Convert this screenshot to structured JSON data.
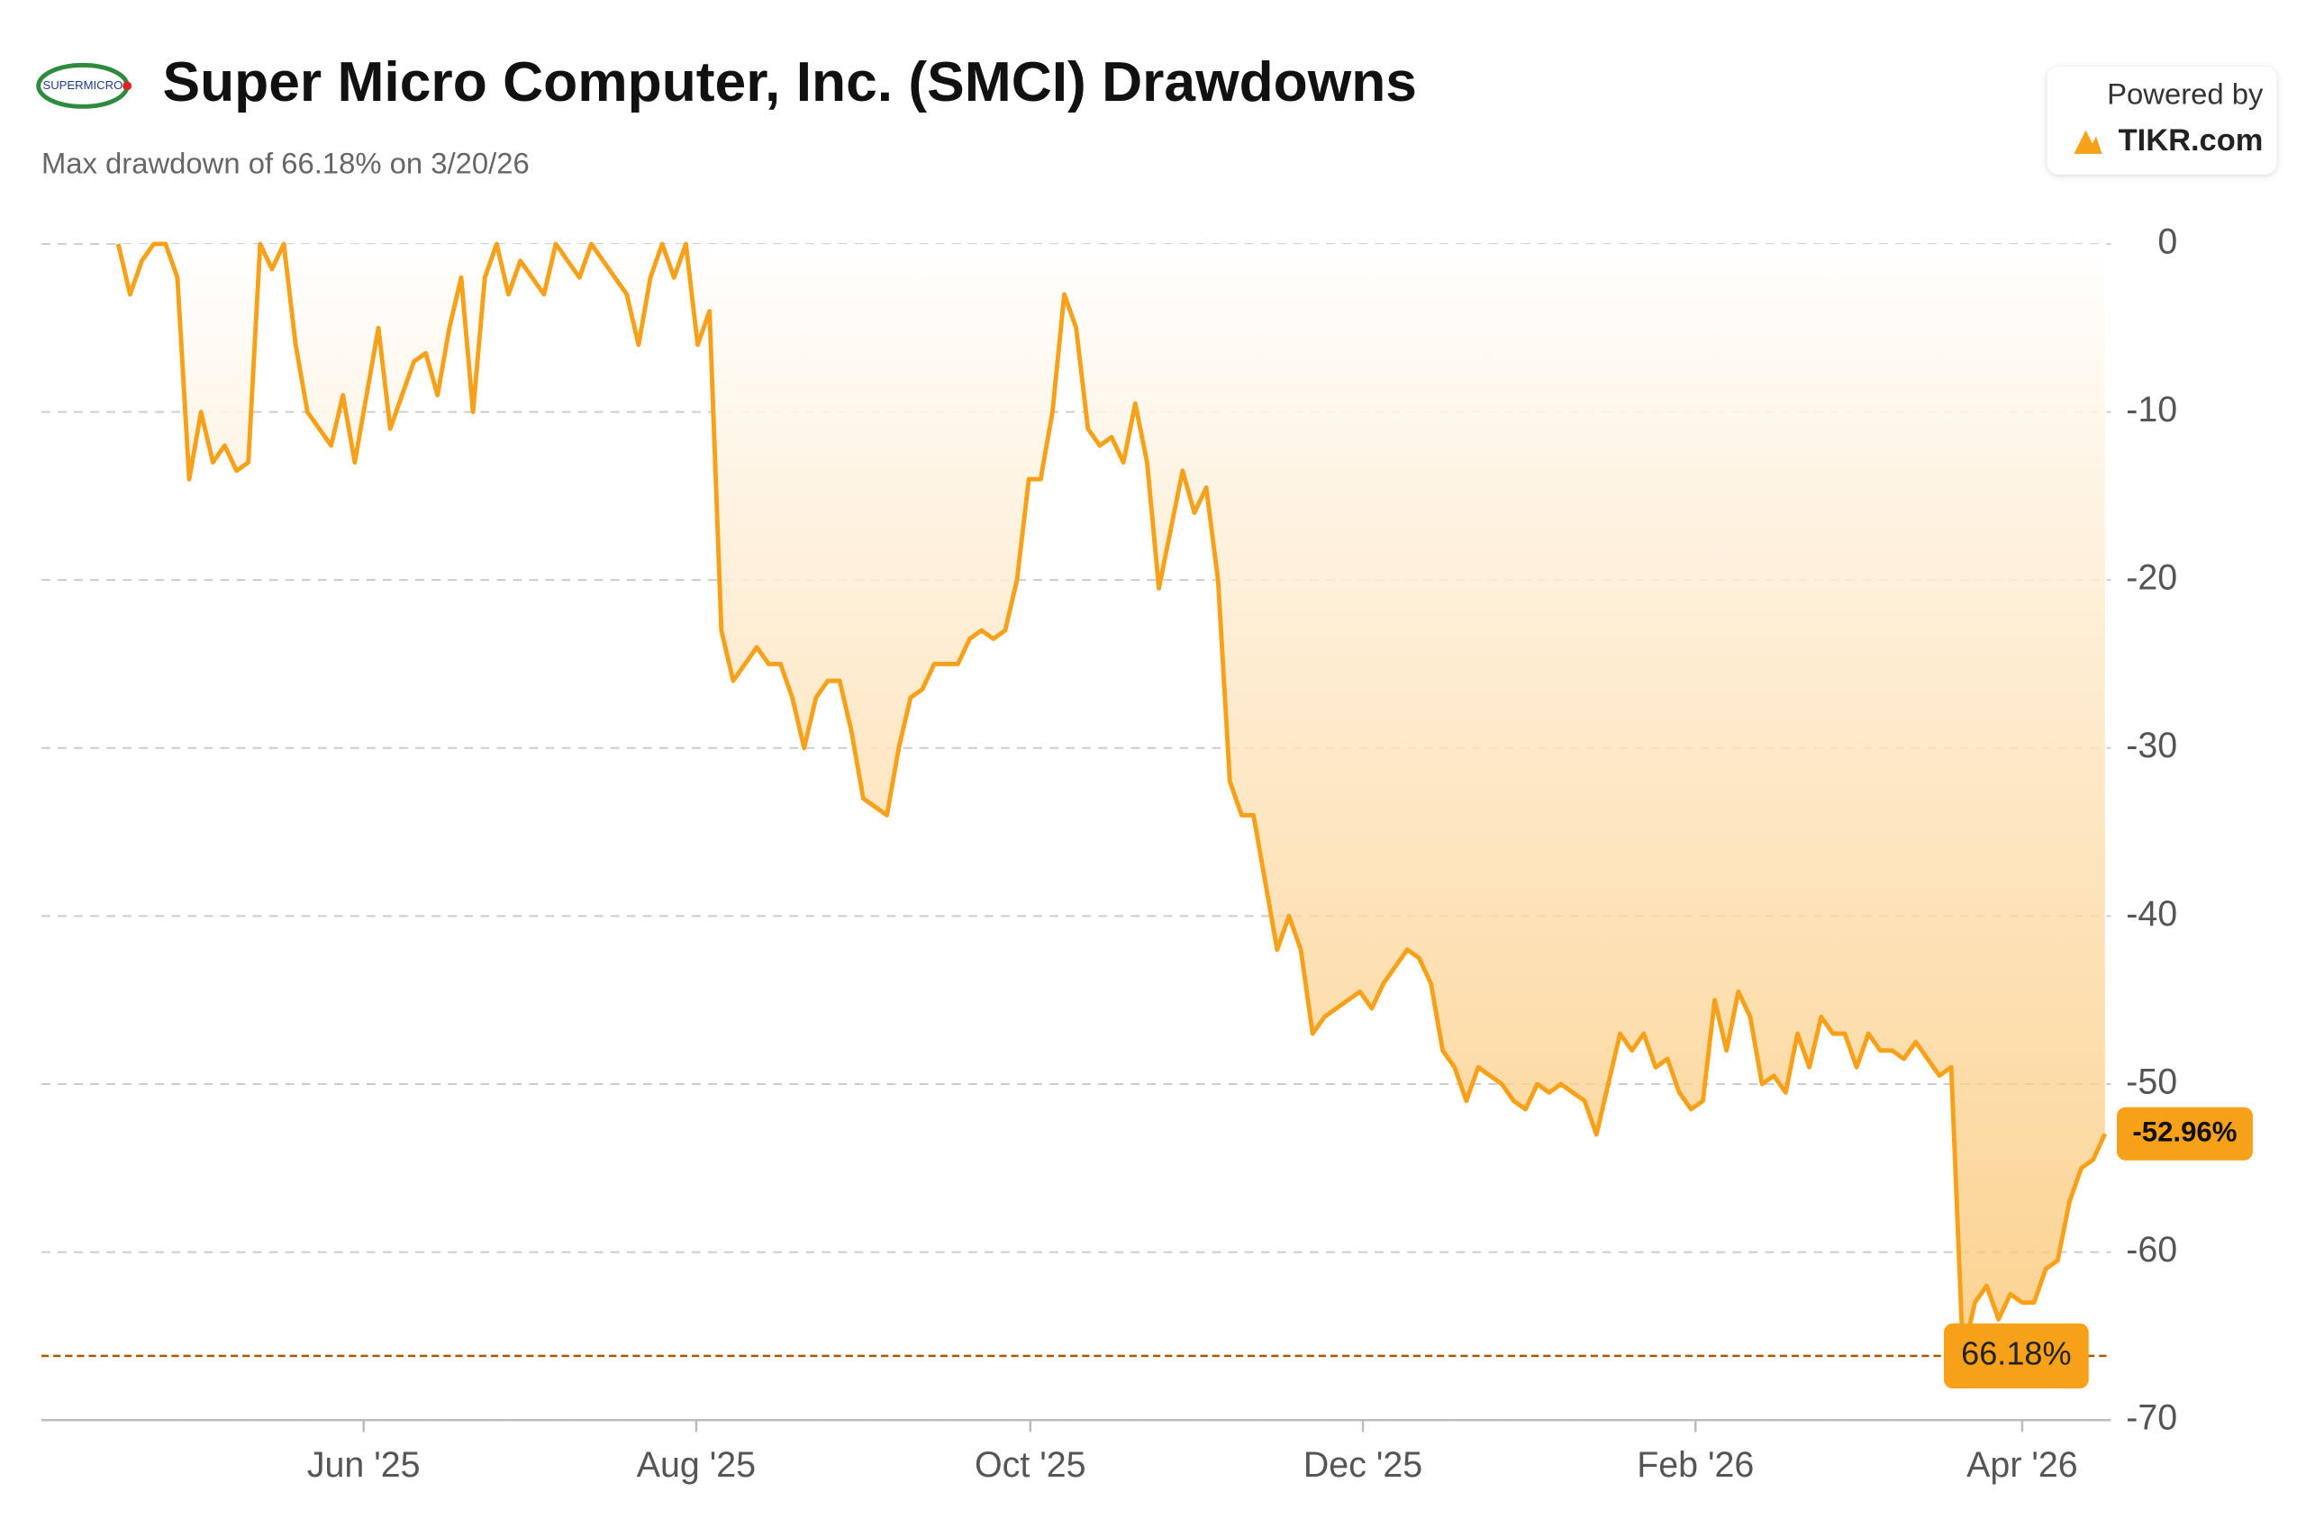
{
  "brand": {
    "logo": "SUPERMICRO",
    "powered_by": "Powered by",
    "provider": "TIKR.com"
  },
  "chart_data": {
    "type": "line",
    "title": "Super Micro Computer, Inc. (SMCI) Drawdowns",
    "subtitle": "Max drawdown of 66.18% on 3/20/26",
    "color": "#f7a11a",
    "values": [
      0,
      -3,
      -1,
      0,
      0,
      -2,
      -14,
      -10,
      -13,
      -12,
      -13.5,
      -13,
      0,
      -1.5,
      0,
      -6,
      -10,
      -11,
      -12,
      -9,
      -13,
      -9,
      -5,
      -11,
      -9,
      -7,
      -6.5,
      -9,
      -5,
      -2,
      -10,
      -2,
      0,
      -3,
      -1,
      -2,
      -3,
      0,
      -1,
      -2,
      0,
      -1,
      -2,
      -3,
      -6,
      -2,
      0,
      -2,
      0,
      -6,
      -4,
      -23,
      -26,
      -25,
      -24,
      -25,
      -25,
      -27,
      -30,
      -27,
      -26,
      -26,
      -29,
      -33,
      -33.5,
      -34,
      -30,
      -27,
      -26.5,
      -25,
      -25,
      -25,
      -23.5,
      -23,
      -23.5,
      -23,
      -20,
      -14,
      -14,
      -10,
      -3,
      -5,
      -11,
      -12,
      -11.5,
      -13,
      -9.5,
      -13,
      -20.5,
      -17,
      -13.5,
      -16,
      -14.5,
      -20,
      -32,
      -34,
      -34,
      -38,
      -42,
      -40,
      -42,
      -47,
      -46,
      -45.5,
      -45,
      -44.5,
      -45.5,
      -44,
      -43,
      -42,
      -42.5,
      -44,
      -48,
      -49,
      -51,
      -49,
      -49.5,
      -50,
      -51,
      -51.5,
      -50,
      -50.5,
      -50,
      -50.5,
      -51,
      -53,
      -50,
      -47,
      -48,
      -47,
      -49,
      -48.5,
      -50.5,
      -51.5,
      -51,
      -45,
      -48,
      -44.5,
      -46,
      -50,
      -49.5,
      -50.5,
      -47,
      -49,
      -46,
      -47,
      -47,
      -49,
      -47,
      -48,
      -48,
      -48.5,
      -47.5,
      -48.5,
      -49.5,
      -49,
      -66.18,
      -63,
      -62,
      -64,
      -62.5,
      -63,
      -63,
      -61,
      -60.5,
      -57,
      -55,
      -54.5,
      -52.96
    ],
    "value_labels": [
      null,
      null,
      null,
      null,
      null,
      null,
      null,
      null,
      null,
      null,
      null,
      null,
      null,
      null,
      null,
      null,
      null,
      null,
      null,
      null,
      null,
      null,
      null,
      null,
      null,
      null,
      null,
      null,
      null,
      null,
      null,
      null,
      null,
      null,
      null,
      null,
      null,
      null,
      null,
      null,
      null,
      null,
      null,
      null,
      null,
      null,
      null,
      null,
      null,
      null,
      null,
      null,
      null,
      null,
      null,
      null,
      null,
      null,
      null,
      null,
      null,
      null,
      null,
      null,
      null,
      null,
      null,
      null,
      null,
      null,
      null,
      null,
      null,
      null,
      null,
      null,
      null,
      null,
      null,
      null,
      null,
      null,
      null,
      null,
      null,
      null,
      null,
      null,
      null,
      null,
      null,
      null,
      null,
      null,
      null,
      null,
      null,
      null,
      null,
      null,
      null,
      null,
      null,
      null,
      null,
      null,
      null,
      null,
      null,
      null,
      null,
      null,
      null,
      null,
      null,
      null,
      null,
      null,
      null,
      null,
      null,
      null,
      null,
      null,
      null,
      null,
      null,
      null,
      null,
      null,
      null,
      null,
      null,
      null,
      null,
      null,
      null,
      null,
      null,
      null,
      null,
      null,
      null,
      null,
      null,
      null,
      null,
      null,
      null,
      null,
      null,
      null,
      null,
      null,
      null,
      null,
      null,
      null,
      null,
      null,
      null,
      null,
      null,
      null,
      null,
      null,
      null,
      null,
      "-52.96%"
    ],
    "max_drawdown": -66.18,
    "max_drawdown_label": "66.18%",
    "xlim": [
      -6.5,
      168.5
    ],
    "xticks": [
      {
        "value": 20.75,
        "label": "Jun '25"
      },
      {
        "value": 48.875,
        "label": "Aug '25"
      },
      {
        "value": 77.125,
        "label": "Oct '25"
      },
      {
        "value": 105.25,
        "label": "Dec '25"
      },
      {
        "value": 133.375,
        "label": "Feb '26"
      },
      {
        "value": 161,
        "label": "Apr '26"
      }
    ],
    "ylim": [
      -70,
      0
    ],
    "yticks": [
      0,
      -10,
      -20,
      -30,
      -40,
      -50,
      -60,
      -70
    ],
    "grid": true
  }
}
